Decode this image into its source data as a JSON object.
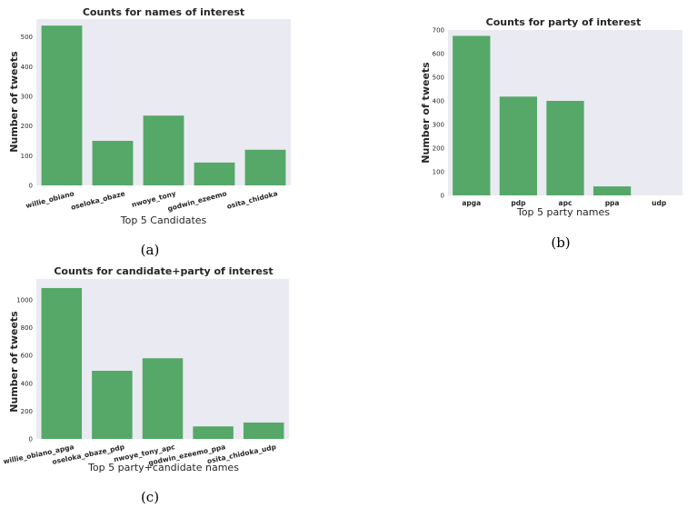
{
  "colors": {
    "bar": "#55a868",
    "plot_bg": "#eaeaf2"
  },
  "chart_data": [
    {
      "type": "bar",
      "title": "Counts for names of interest",
      "xlabel": "Top 5 Candidates",
      "ylabel": "Number of tweets",
      "categories": [
        "willie_obiano",
        "oseloka_obaze",
        "nwoye_tony",
        "godwin_ezeemo",
        "osita_chidoka"
      ],
      "values": [
        538,
        150,
        235,
        77,
        120
      ],
      "ylim": [
        0,
        560
      ],
      "yticks": [
        0,
        100,
        200,
        300,
        400,
        500
      ],
      "grid": false,
      "caption": "(a)"
    },
    {
      "type": "bar",
      "title": "Counts for party of interest",
      "xlabel": "Top 5 party names",
      "ylabel": "Number of tweets",
      "categories": [
        "apga",
        "pdp",
        "apc",
        "ppa",
        "udp"
      ],
      "values": [
        675,
        418,
        400,
        38,
        0
      ],
      "ylim": [
        0,
        700
      ],
      "yticks": [
        0,
        100,
        200,
        300,
        400,
        500,
        600,
        700
      ],
      "grid": false,
      "caption": "(b)"
    },
    {
      "type": "bar",
      "title": "Counts for candidate+party of interest",
      "xlabel": "Top 5 party+candidate names",
      "ylabel": "Number of tweets",
      "categories": [
        "willie_obiano_apga",
        "oseloka_obaze_pdp",
        "nwoye_tony_apc",
        "godwin_ezeemo_ppa",
        "osita_chidoka_udp"
      ],
      "values": [
        1085,
        490,
        580,
        90,
        118
      ],
      "ylim": [
        0,
        1150
      ],
      "yticks": [
        0,
        200,
        400,
        600,
        800,
        1000
      ],
      "grid": false,
      "caption": "(c)"
    }
  ]
}
